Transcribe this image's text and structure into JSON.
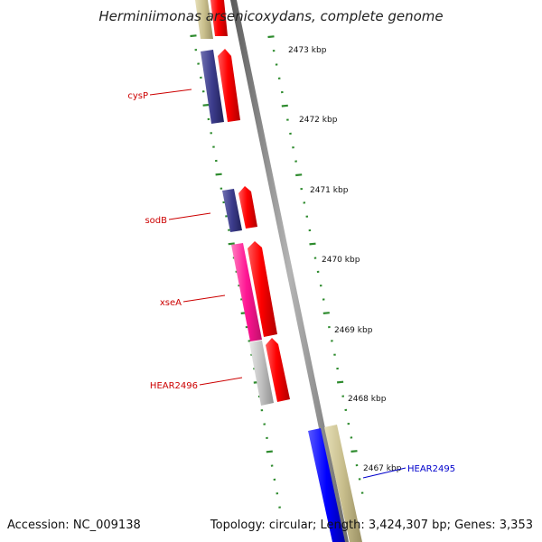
{
  "title": "Herminiimonas arsenicoxydans, complete genome",
  "footer": {
    "accession": "Accession: NC_009138",
    "summary": "Topology: circular; Length: 3,424,307 bp; Genes: 3,353"
  },
  "scale_ticks": [
    "2473 kbp",
    "2472 kbp",
    "2471 kbp",
    "2470 kbp",
    "2469 kbp",
    "2468 kbp",
    "2467 kbp"
  ],
  "gene_labels": [
    {
      "text": "cysP",
      "color": "#cc0000"
    },
    {
      "text": "sodB",
      "color": "#cc0000"
    },
    {
      "text": "xseA",
      "color": "#cc0000"
    },
    {
      "text": "HEAR2496",
      "color": "#cc0000"
    },
    {
      "text": "HEAR2495",
      "color": "#0000cc"
    }
  ],
  "colors": {
    "backbone": "#8c8c8c",
    "tick_marks": "#2e8b2e",
    "cds_red": "#ff0000",
    "cds_navy": "#3c3c8c",
    "cds_magenta": "#ff1493",
    "cds_gray": "#c0c0c0",
    "cds_khaki": "#c8be8c",
    "cds_blue": "#0000ff"
  }
}
